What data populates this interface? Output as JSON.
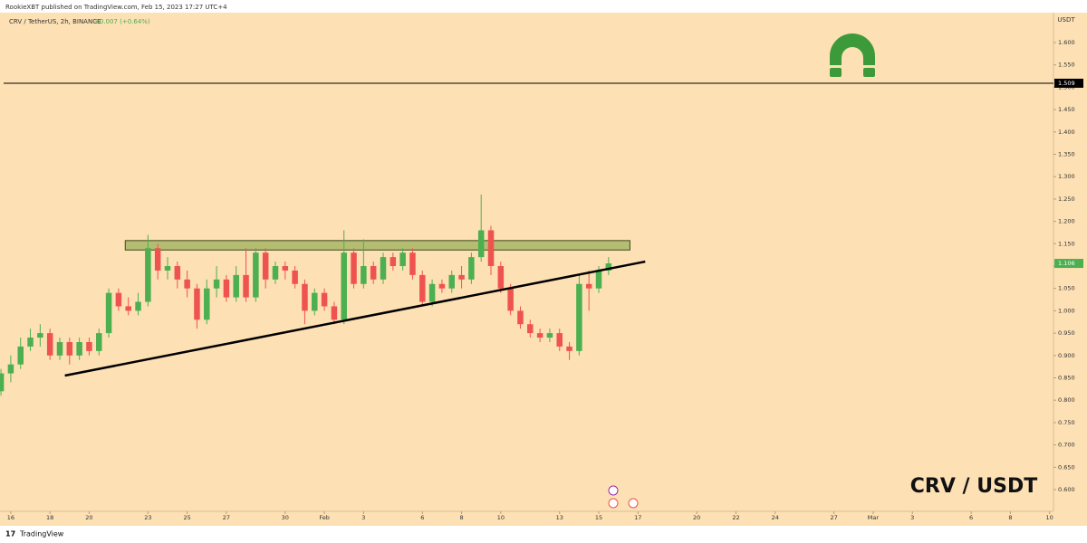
{
  "chart_data": {
    "type": "candlestick",
    "header": "RookieXBT published on TradingView.com, Feb 15, 2023 17:27 UTC+4",
    "title": "CRV / TetherUS, 2h, BINANCE",
    "change": "+0.007 (+0.64%)",
    "watermark": "CRV / USDT",
    "y_axis_label": "USDT",
    "footer": "TradingView",
    "up_color": "#4caf50",
    "down_color": "#ef5350",
    "x": [
      -0.5,
      0,
      0.5,
      1,
      1.5,
      2,
      2.5,
      3,
      3.5,
      4,
      4.5,
      5,
      5.5,
      6,
      6.5,
      7,
      7.5,
      8,
      8.5,
      9,
      9.5,
      10,
      10.5,
      11,
      11.5,
      12,
      12.5,
      13,
      13.5,
      14,
      14.5,
      15,
      15.5,
      16,
      16.5,
      17,
      17.5,
      18,
      18.5,
      19,
      19.5,
      20,
      20.5,
      21,
      21.5,
      22,
      22.5,
      23,
      23.5,
      24,
      24.5,
      25,
      25.5,
      26,
      26.5,
      27,
      27.5,
      28,
      28.5,
      29,
      29.5,
      30,
      30.5
    ],
    "open": [
      0.82,
      0.86,
      0.88,
      0.92,
      0.94,
      0.95,
      0.9,
      0.93,
      0.9,
      0.93,
      0.91,
      0.95,
      1.04,
      1.01,
      1.0,
      1.02,
      1.14,
      1.09,
      1.1,
      1.07,
      1.05,
      0.98,
      1.05,
      1.07,
      1.03,
      1.08,
      1.03,
      1.13,
      1.07,
      1.1,
      1.09,
      1.06,
      1.0,
      1.04,
      1.01,
      0.98,
      1.13,
      1.06,
      1.1,
      1.07,
      1.12,
      1.1,
      1.13,
      1.08,
      1.02,
      1.06,
      1.05,
      1.08,
      1.07,
      1.12,
      1.18,
      1.1,
      1.05,
      1.0,
      0.97,
      0.95,
      0.94,
      0.95,
      0.92,
      0.91,
      1.06,
      1.05,
      1.09
    ],
    "high": [
      0.87,
      0.9,
      0.94,
      0.96,
      0.97,
      0.96,
      0.94,
      0.94,
      0.94,
      0.94,
      0.96,
      1.05,
      1.05,
      1.03,
      1.04,
      1.17,
      1.15,
      1.12,
      1.11,
      1.09,
      1.06,
      1.07,
      1.1,
      1.08,
      1.1,
      1.14,
      1.14,
      1.14,
      1.11,
      1.11,
      1.1,
      1.07,
      1.05,
      1.05,
      1.02,
      1.18,
      1.14,
      1.16,
      1.11,
      1.13,
      1.13,
      1.14,
      1.14,
      1.09,
      1.07,
      1.07,
      1.09,
      1.1,
      1.13,
      1.26,
      1.19,
      1.11,
      1.06,
      1.01,
      0.98,
      0.96,
      0.96,
      0.96,
      0.93,
      1.08,
      1.09,
      1.1,
      1.12
    ],
    "low": [
      0.81,
      0.84,
      0.87,
      0.91,
      0.92,
      0.89,
      0.89,
      0.88,
      0.89,
      0.9,
      0.9,
      0.94,
      1.0,
      0.99,
      0.99,
      1.01,
      1.07,
      1.07,
      1.05,
      1.03,
      0.96,
      0.97,
      1.03,
      1.02,
      1.02,
      1.02,
      1.02,
      1.05,
      1.06,
      1.07,
      1.05,
      0.97,
      0.99,
      1.0,
      0.97,
      0.97,
      1.05,
      1.05,
      1.06,
      1.06,
      1.09,
      1.09,
      1.07,
      1.01,
      1.01,
      1.04,
      1.04,
      1.05,
      1.06,
      1.11,
      1.08,
      1.04,
      0.99,
      0.96,
      0.94,
      0.93,
      0.93,
      0.91,
      0.89,
      0.9,
      1.0,
      1.04,
      1.08
    ],
    "close": [
      0.86,
      0.88,
      0.92,
      0.94,
      0.95,
      0.9,
      0.93,
      0.9,
      0.93,
      0.91,
      0.95,
      1.04,
      1.01,
      1.0,
      1.02,
      1.14,
      1.09,
      1.1,
      1.07,
      1.05,
      0.98,
      1.05,
      1.07,
      1.03,
      1.08,
      1.03,
      1.13,
      1.07,
      1.1,
      1.09,
      1.06,
      1.0,
      1.04,
      1.01,
      0.98,
      1.13,
      1.06,
      1.1,
      1.07,
      1.12,
      1.1,
      1.13,
      1.08,
      1.02,
      1.06,
      1.05,
      1.08,
      1.07,
      1.12,
      1.18,
      1.1,
      1.05,
      1.0,
      0.97,
      0.95,
      0.94,
      0.95,
      0.92,
      0.91,
      1.06,
      1.05,
      1.09,
      1.106
    ],
    "xlim": [
      -0.55,
      53.2
    ],
    "ylim": [
      0.5514,
      1.6952
    ],
    "xticks": [
      {
        "value": 0,
        "label": "16"
      },
      {
        "value": 2,
        "label": "18"
      },
      {
        "value": 4,
        "label": "20"
      },
      {
        "value": 7,
        "label": "23"
      },
      {
        "value": 9,
        "label": "25"
      },
      {
        "value": 11,
        "label": "27"
      },
      {
        "value": 14,
        "label": "30"
      },
      {
        "value": 16,
        "label": "Feb"
      },
      {
        "value": 18,
        "label": "3"
      },
      {
        "value": 21,
        "label": "6"
      },
      {
        "value": 23,
        "label": "8"
      },
      {
        "value": 25,
        "label": "10"
      },
      {
        "value": 28,
        "label": "13"
      },
      {
        "value": 30,
        "label": "15"
      },
      {
        "value": 32,
        "label": "17"
      },
      {
        "value": 35,
        "label": "20"
      },
      {
        "value": 37,
        "label": "22"
      },
      {
        "value": 39,
        "label": "24"
      },
      {
        "value": 42,
        "label": "27"
      },
      {
        "value": 44,
        "label": "Mar"
      },
      {
        "value": 46,
        "label": "3"
      },
      {
        "value": 49,
        "label": "6"
      },
      {
        "value": 51,
        "label": "8"
      },
      {
        "value": 53,
        "label": "10"
      }
    ],
    "yticks": [
      {
        "value": 0.6,
        "label": "0.600"
      },
      {
        "value": 0.65,
        "label": "0.650"
      },
      {
        "value": 0.7,
        "label": "0.700"
      },
      {
        "value": 0.75,
        "label": "0.750"
      },
      {
        "value": 0.8,
        "label": "0.800"
      },
      {
        "value": 0.85,
        "label": "0.850"
      },
      {
        "value": 0.9,
        "label": "0.900"
      },
      {
        "value": 0.95,
        "label": "0.950"
      },
      {
        "value": 1.0,
        "label": "1.000"
      },
      {
        "value": 1.05,
        "label": "1.050"
      },
      {
        "value": 1.1,
        "label": "1.100"
      },
      {
        "value": 1.15,
        "label": "1.150"
      },
      {
        "value": 1.2,
        "label": "1.200"
      },
      {
        "value": 1.25,
        "label": "1.250"
      },
      {
        "value": 1.3,
        "label": "1.300"
      },
      {
        "value": 1.35,
        "label": "1.350"
      },
      {
        "value": 1.4,
        "label": "1.400"
      },
      {
        "value": 1.45,
        "label": "1.450"
      },
      {
        "value": 1.5,
        "label": "1.500"
      },
      {
        "value": 1.55,
        "label": "1.550"
      },
      {
        "value": 1.6,
        "label": "1.600"
      }
    ],
    "horizontal_line": {
      "value": 1.509,
      "label": "1.509"
    },
    "last_price": {
      "value": 1.106,
      "label": "1.106"
    },
    "trendline": {
      "x": [
        2.76,
        32.37
      ],
      "y": [
        0.855,
        1.11
      ]
    },
    "resistance_zone": {
      "x": [
        5.84,
        31.59
      ],
      "y": [
        1.136,
        1.157
      ]
    }
  }
}
